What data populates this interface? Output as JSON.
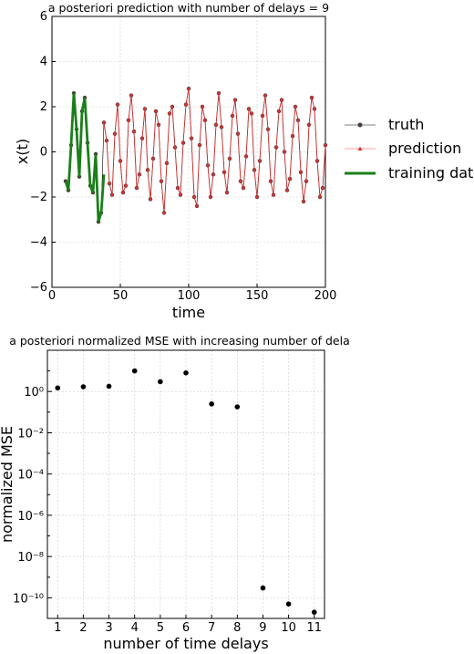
{
  "chart_data": [
    {
      "type": "line",
      "title": "a posteriori prediction with number of delays = 9",
      "xlabel": "time",
      "ylabel": "x(t)",
      "xlim": [
        0,
        200
      ],
      "ylim": [
        -6,
        6
      ],
      "xticks": [
        "0",
        "50",
        "100",
        "150",
        "200"
      ],
      "yticks": [
        "6",
        "4",
        "2",
        "0",
        "−2",
        "−4",
        "−6"
      ],
      "grid": true,
      "legend_position": "outside-right",
      "series": [
        {
          "name": "truth",
          "color": "#000000",
          "x": [
            10,
            12,
            14,
            16,
            18,
            20,
            22,
            24,
            26,
            28,
            30,
            32,
            34,
            36,
            38,
            40,
            42,
            44,
            46,
            48,
            50,
            52,
            54,
            56,
            58,
            60,
            62,
            64,
            66,
            68,
            70,
            72,
            74,
            76,
            78,
            80,
            82,
            84,
            86,
            88,
            90,
            92,
            94,
            96,
            98,
            100,
            102,
            104,
            106,
            108,
            110,
            112,
            114,
            116,
            118,
            120,
            122,
            124,
            126,
            128,
            130,
            132,
            134,
            136,
            138,
            140,
            142,
            144,
            146,
            148,
            150,
            152,
            154,
            156,
            158,
            160,
            162,
            164,
            166,
            168,
            170,
            172,
            174,
            176,
            178,
            180,
            182,
            184,
            186,
            188,
            190,
            192,
            194,
            196,
            198,
            200
          ],
          "y": [
            -1.3,
            -1.7,
            0.3,
            2.6,
            1.0,
            -1.1,
            1.8,
            2.4,
            0.4,
            -1.5,
            -1.8,
            -0.1,
            -3.1,
            -2.7,
            1.3,
            0.5,
            -1.4,
            -1.9,
            0.8,
            2.1,
            -0.4,
            -1.8,
            -1.5,
            1.4,
            2.5,
            0.9,
            -1.6,
            -1.0,
            0.6,
            1.9,
            -0.8,
            -2.1,
            -0.3,
            1.8,
            1.2,
            -1.3,
            -2.7,
            -0.5,
            1.7,
            2.0,
            0.2,
            -1.6,
            -1.9,
            0.4,
            2.1,
            2.8,
            0.6,
            -2.0,
            -2.4,
            0.3,
            2.0,
            1.4,
            -0.6,
            -2.0,
            -1.0,
            1.2,
            2.6,
            1.1,
            -0.9,
            -1.8,
            -0.3,
            1.6,
            2.3,
            0.8,
            -1.3,
            -1.6,
            -0.2,
            1.9,
            1.7,
            -0.8,
            -2.0,
            -0.4,
            1.6,
            2.5,
            1.0,
            -1.3,
            -1.9,
            0.2,
            1.8,
            2.3,
            0.0,
            -1.7,
            -1.2,
            0.7,
            2.0,
            1.4,
            -0.9,
            -2.2,
            -1.3,
            1.2,
            2.4,
            1.9,
            -0.4,
            -2.0,
            -1.6,
            0.3
          ]
        },
        {
          "name": "prediction",
          "color": "#ff7f7f"
        },
        {
          "name": "training data",
          "color": "#1a7f1a",
          "x": [
            10,
            12,
            14,
            16,
            18,
            20,
            22,
            24,
            26,
            28,
            30,
            32,
            34,
            36,
            38
          ],
          "y": [
            -1.3,
            -1.7,
            0.3,
            2.6,
            1.0,
            -1.1,
            1.8,
            2.4,
            0.4,
            -1.5,
            -1.8,
            -0.1,
            -3.1,
            -2.7,
            -1.0
          ]
        }
      ]
    },
    {
      "type": "scatter",
      "title": "a posteriori normalized MSE with increasing number of dela",
      "xlabel": "number of time delays",
      "ylabel": "normalized MSE",
      "yscale": "log",
      "xlim": [
        0.6,
        11.4
      ],
      "ylim": [
        1e-11,
        100.0
      ],
      "xticks": [
        "1",
        "2",
        "3",
        "4",
        "5",
        "6",
        "7",
        "8",
        "9",
        "10",
        "11"
      ],
      "yticks": [
        "10⁰",
        "10⁻²",
        "10⁻⁴",
        "10⁻⁶",
        "10⁻⁸",
        "10⁻¹⁰"
      ],
      "grid": true,
      "x": [
        1,
        2,
        3,
        4,
        5,
        6,
        7,
        8,
        9,
        10,
        11
      ],
      "y": [
        1.5,
        1.7,
        1.8,
        10,
        3,
        8,
        0.25,
        0.18,
        3e-10,
        5e-11,
        2e-11
      ]
    }
  ]
}
